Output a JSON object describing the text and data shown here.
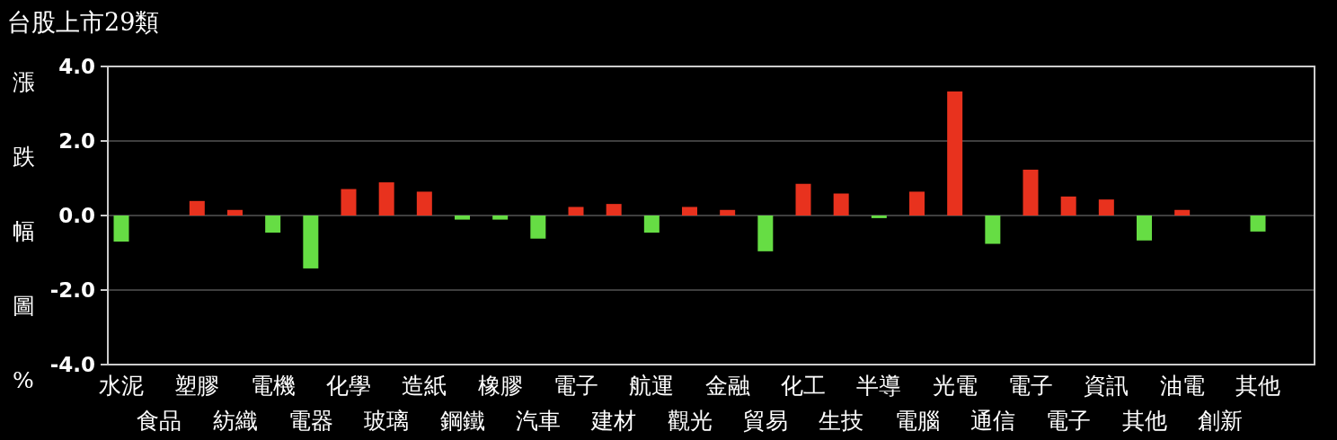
{
  "chart_data": {
    "type": "bar",
    "title": "台股上市29類",
    "ylabel": "漲跌幅圖%",
    "categories": [
      "水泥",
      "食品",
      "塑膠",
      "紡織",
      "電機",
      "電器",
      "化學",
      "玻璃",
      "造紙",
      "鋼鐵",
      "橡膠",
      "汽車",
      "電子",
      "建材",
      "航運",
      "觀光",
      "金融",
      "貿易",
      "化工",
      "生技",
      "半導",
      "電腦",
      "光電",
      "通信",
      "電子",
      "電子",
      "資訊",
      "其他",
      "油電",
      "創新",
      "其他"
    ],
    "values": [
      -0.7,
      0,
      0.39,
      0.15,
      -0.46,
      -1.42,
      0.71,
      0.89,
      0.64,
      -0.11,
      -0.11,
      -0.62,
      0.23,
      0.31,
      -0.46,
      0.23,
      0.15,
      -0.96,
      0.85,
      0.59,
      -0.07,
      0.64,
      3.33,
      -0.76,
      1.23,
      0.51,
      0.43,
      -0.67,
      0.15,
      0,
      -0.43
    ],
    "colors": [
      "#66dd44",
      "#e8321e",
      "#e8321e",
      "#e8321e",
      "#66dd44",
      "#66dd44",
      "#e8321e",
      "#e8321e",
      "#e8321e",
      "#66dd44",
      "#66dd44",
      "#66dd44",
      "#e8321e",
      "#e8321e",
      "#66dd44",
      "#e8321e",
      "#e8321e",
      "#66dd44",
      "#e8321e",
      "#e8321e",
      "#66dd44",
      "#e8321e",
      "#e8321e",
      "#66dd44",
      "#e8321e",
      "#e8321e",
      "#e8321e",
      "#66dd44",
      "#e8321e",
      "#e8321e",
      "#66dd44"
    ],
    "ylim": [
      -4,
      4
    ],
    "yticks": [
      {
        "value": -4,
        "label": "-4.0"
      },
      {
        "value": -2,
        "label": "-2.0"
      },
      {
        "value": 0,
        "label": "0.0"
      },
      {
        "value": 2,
        "label": "2.0"
      },
      {
        "value": 4,
        "label": "4.0"
      }
    ],
    "grid": "y"
  }
}
